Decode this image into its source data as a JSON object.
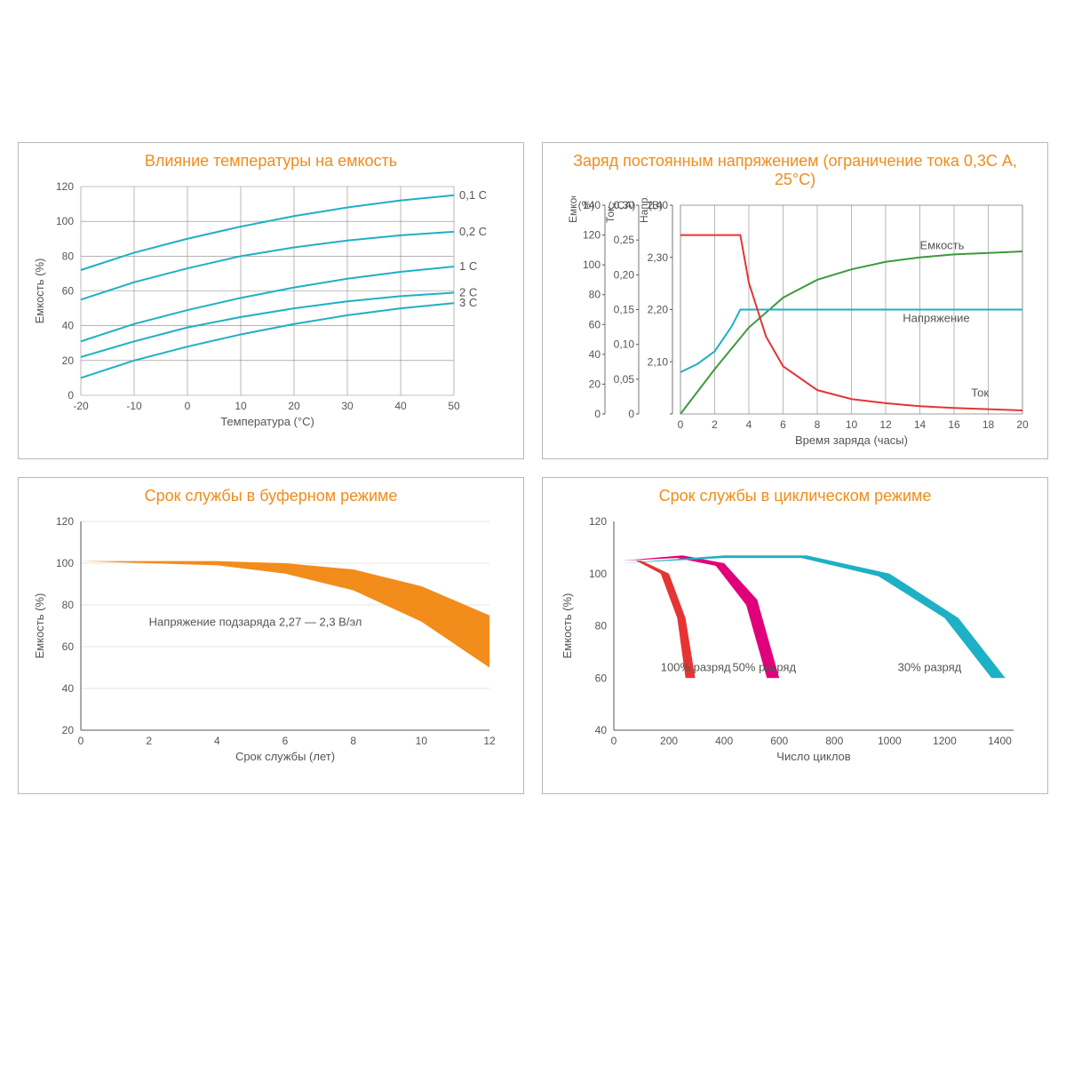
{
  "colors": {
    "title": "#f28c1a",
    "grid": "#888888",
    "axis": "#555555",
    "text": "#555555",
    "teal": "#1eb0c4",
    "orange": "#f28c1a",
    "green": "#3c9a3c",
    "red": "#e63434",
    "pink": "#e0007a",
    "blue": "#1eb0c4"
  },
  "chart1": {
    "title": "Влияние температуры на емкость",
    "ylabel": "Емкость (%)",
    "xlabel": "Температура (°C)",
    "x_ticks": [
      -20,
      -10,
      0,
      10,
      20,
      30,
      40,
      50
    ],
    "y_ticks": [
      0,
      20,
      40,
      60,
      80,
      100,
      120
    ],
    "xlim": [
      -20,
      50
    ],
    "ylim": [
      0,
      120
    ],
    "series": [
      {
        "label": "0,1 C",
        "color": "#1eb0c4",
        "pts": [
          [
            -20,
            72
          ],
          [
            -10,
            82
          ],
          [
            0,
            90
          ],
          [
            10,
            97
          ],
          [
            20,
            103
          ],
          [
            30,
            108
          ],
          [
            40,
            112
          ],
          [
            50,
            115
          ]
        ]
      },
      {
        "label": "0,2 C",
        "color": "#1eb0c4",
        "pts": [
          [
            -20,
            55
          ],
          [
            -10,
            65
          ],
          [
            0,
            73
          ],
          [
            10,
            80
          ],
          [
            20,
            85
          ],
          [
            30,
            89
          ],
          [
            40,
            92
          ],
          [
            50,
            94
          ]
        ]
      },
      {
        "label": "1 C",
        "color": "#1eb0c4",
        "pts": [
          [
            -20,
            31
          ],
          [
            -10,
            41
          ],
          [
            0,
            49
          ],
          [
            10,
            56
          ],
          [
            20,
            62
          ],
          [
            30,
            67
          ],
          [
            40,
            71
          ],
          [
            50,
            74
          ]
        ]
      },
      {
        "label": "2 C",
        "color": "#1eb0c4",
        "pts": [
          [
            -20,
            22
          ],
          [
            -10,
            31
          ],
          [
            0,
            39
          ],
          [
            10,
            45
          ],
          [
            20,
            50
          ],
          [
            30,
            54
          ],
          [
            40,
            57
          ],
          [
            50,
            59
          ]
        ]
      },
      {
        "label": "3 C",
        "color": "#1eb0c4",
        "pts": [
          [
            -20,
            10
          ],
          [
            -10,
            20
          ],
          [
            0,
            28
          ],
          [
            10,
            35
          ],
          [
            20,
            41
          ],
          [
            30,
            46
          ],
          [
            40,
            50
          ],
          [
            50,
            53
          ]
        ]
      }
    ]
  },
  "chart2": {
    "title": "Заряд постоянным напряжением (ограничение тока 0,3С А, 25°C)",
    "xlabel": "Время заряда (часы)",
    "y_axes": [
      {
        "label": "Емкость (%)",
        "ticks": [
          0,
          20,
          40,
          60,
          80,
          100,
          120,
          140
        ]
      },
      {
        "label": "Ток (xCA)",
        "ticks": [
          0,
          0.05,
          0.1,
          0.15,
          0.2,
          0.25,
          0.3
        ],
        "tick_labels": [
          "0",
          "0,05",
          "0,10",
          "0,15",
          "0,20",
          "0,25",
          "0,30"
        ]
      },
      {
        "label": "Напр. (В)",
        "ticks": [
          2.0,
          2.1,
          2.2,
          2.3,
          2.4
        ],
        "tick_labels": [
          "",
          "2,10",
          "2,20",
          "2,30",
          "2,40"
        ]
      }
    ],
    "x_ticks": [
      0,
      2,
      4,
      6,
      8,
      10,
      12,
      14,
      16,
      18,
      20
    ],
    "xlim": [
      0,
      20
    ],
    "series": [
      {
        "label": "Емкость",
        "color": "#3c9a3c",
        "axis": 0,
        "ymin": 0,
        "ymax": 140,
        "pts": [
          [
            0,
            0
          ],
          [
            2,
            30
          ],
          [
            4,
            58
          ],
          [
            6,
            78
          ],
          [
            8,
            90
          ],
          [
            10,
            97
          ],
          [
            12,
            102
          ],
          [
            14,
            105
          ],
          [
            16,
            107
          ],
          [
            18,
            108
          ],
          [
            20,
            109
          ]
        ]
      },
      {
        "label": "Напряжение",
        "color": "#1eb0c4",
        "axis": 2,
        "ymin": 2.0,
        "ymax": 2.5,
        "pts": [
          [
            0,
            2.1
          ],
          [
            1,
            2.12
          ],
          [
            2,
            2.15
          ],
          [
            3,
            2.21
          ],
          [
            3.5,
            2.25
          ],
          [
            4,
            2.25
          ],
          [
            6,
            2.25
          ],
          [
            20,
            2.25
          ]
        ]
      },
      {
        "label": "Ток",
        "color": "#e63434",
        "axis": 1,
        "ymin": 0,
        "ymax": 0.35,
        "pts": [
          [
            0,
            0.3
          ],
          [
            3,
            0.3
          ],
          [
            3.5,
            0.3
          ],
          [
            4,
            0.22
          ],
          [
            5,
            0.13
          ],
          [
            6,
            0.08
          ],
          [
            8,
            0.04
          ],
          [
            10,
            0.025
          ],
          [
            12,
            0.018
          ],
          [
            14,
            0.013
          ],
          [
            16,
            0.01
          ],
          [
            18,
            0.008
          ],
          [
            20,
            0.006
          ]
        ]
      }
    ]
  },
  "chart3": {
    "title": "Срок службы в буферном режиме",
    "ylabel": "Емкость (%)",
    "xlabel": "Срок службы (лет)",
    "x_ticks": [
      0,
      2,
      4,
      6,
      8,
      10,
      12
    ],
    "y_ticks": [
      20,
      40,
      60,
      80,
      100,
      120
    ],
    "xlim": [
      0,
      12
    ],
    "ylim": [
      20,
      120
    ],
    "note": "Напряжение подзаряда 2,27 — 2,3 В/эл",
    "band": {
      "color": "#f28c1a",
      "upper": [
        [
          0,
          101
        ],
        [
          2,
          101
        ],
        [
          4,
          101
        ],
        [
          6,
          100
        ],
        [
          8,
          97
        ],
        [
          10,
          89
        ],
        [
          12,
          75
        ]
      ],
      "lower": [
        [
          0,
          101
        ],
        [
          2,
          100
        ],
        [
          4,
          99
        ],
        [
          6,
          95
        ],
        [
          8,
          87
        ],
        [
          10,
          72
        ],
        [
          12,
          50
        ]
      ]
    }
  },
  "chart4": {
    "title": "Срок службы в циклическом режиме",
    "ylabel": "Емкость (%)",
    "xlabel": "Число циклов",
    "x_ticks": [
      0,
      200,
      400,
      600,
      800,
      1000,
      1200,
      1400
    ],
    "y_ticks": [
      40,
      60,
      80,
      100,
      120
    ],
    "xlim": [
      0,
      1450
    ],
    "ylim": [
      40,
      120
    ],
    "bands": [
      {
        "label": "100% разряд",
        "color": "#e63434",
        "upper": [
          [
            30,
            105
          ],
          [
            100,
            105
          ],
          [
            200,
            100
          ],
          [
            260,
            83
          ],
          [
            295,
            60
          ]
        ],
        "lower": [
          [
            30,
            105
          ],
          [
            80,
            105
          ],
          [
            170,
            100
          ],
          [
            230,
            83
          ],
          [
            260,
            60
          ]
        ]
      },
      {
        "label": "50% разряд",
        "color": "#e0007a",
        "upper": [
          [
            30,
            105
          ],
          [
            250,
            107
          ],
          [
            400,
            104
          ],
          [
            520,
            90
          ],
          [
            600,
            60
          ]
        ],
        "lower": [
          [
            30,
            105
          ],
          [
            230,
            106
          ],
          [
            370,
            103
          ],
          [
            480,
            88
          ],
          [
            555,
            60
          ]
        ]
      },
      {
        "label": "30% разряд",
        "color": "#1eb0c4",
        "upper": [
          [
            30,
            104
          ],
          [
            400,
            107
          ],
          [
            700,
            107
          ],
          [
            1000,
            100
          ],
          [
            1250,
            83
          ],
          [
            1420,
            60
          ]
        ],
        "lower": [
          [
            30,
            104
          ],
          [
            400,
            106
          ],
          [
            680,
            106
          ],
          [
            960,
            99
          ],
          [
            1200,
            83
          ],
          [
            1370,
            60
          ]
        ]
      }
    ]
  }
}
